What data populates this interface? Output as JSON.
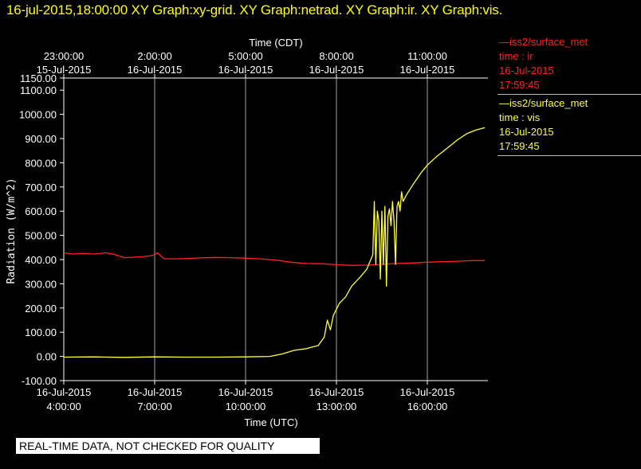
{
  "title_bar": "16-jul-2015,18:00:00  XY Graph:xy-grid.  XY Graph:netrad.  XY Graph:ir.  XY Graph:vis.",
  "disclaimer": "REAL-TIME DATA, NOT CHECKED FOR QUALITY",
  "colors": {
    "ir": "#ff2020",
    "vis": "#ffff33",
    "grid": "#ffffff",
    "background": "#000000"
  },
  "legend": [
    {
      "name": "iss2/surface_met",
      "prefix": "—",
      "label": "time : ir",
      "date": "16-Jul-2015",
      "time": "17:59:45",
      "color": "#ff2020"
    },
    {
      "name": "iss2/surface_met",
      "prefix": "—",
      "label": "time : vis",
      "date": "16-Jul-2015",
      "time": "17:59:45",
      "color": "#ffff33"
    }
  ],
  "chart_data": {
    "type": "line",
    "title": "",
    "ylabel": "Radiation (W/m^2)",
    "xlabel_bottom": "Time (UTC)",
    "xlabel_top": "Time (CDT)",
    "ylim": [
      -100,
      1150
    ],
    "xlim_hours_utc": [
      4.0,
      18.0
    ],
    "grid": true,
    "yticks": [
      "-100.00",
      "0.00",
      "100.00",
      "200.00",
      "300.00",
      "400.00",
      "500.00",
      "600.00",
      "700.00",
      "800.00",
      "900.00",
      "1000.00",
      "1100.00",
      "1150.00"
    ],
    "ytick_values": [
      -100,
      0,
      100,
      200,
      300,
      400,
      500,
      600,
      700,
      800,
      900,
      1000,
      1100,
      1150
    ],
    "bottom_ticks": [
      {
        "hour": 4,
        "date": "16-Jul-2015",
        "time": "4:00:00"
      },
      {
        "hour": 7,
        "date": "16-Jul-2015",
        "time": "7:00:00"
      },
      {
        "hour": 10,
        "date": "16-Jul-2015",
        "time": "10:00:00"
      },
      {
        "hour": 13,
        "date": "16-Jul-2015",
        "time": "13:00:00"
      },
      {
        "hour": 16,
        "date": "16-Jul-2015",
        "time": "16:00:00"
      }
    ],
    "top_ticks": [
      {
        "hour": 4,
        "time": "23:00:00",
        "date": "15-Jul-2015"
      },
      {
        "hour": 7,
        "time": "2:00:00",
        "date": "16-Jul-2015"
      },
      {
        "hour": 10,
        "time": "5:00:00",
        "date": "16-Jul-2015"
      },
      {
        "hour": 13,
        "time": "8:00:00",
        "date": "16-Jul-2015"
      },
      {
        "hour": 16,
        "time": "11:00:00",
        "date": "16-Jul-2015"
      }
    ],
    "series": [
      {
        "name": "iss2/surface_met  time : ir",
        "color": "#ff2020",
        "x": [
          4.0,
          4.3,
          4.6,
          5.0,
          5.4,
          5.7,
          6.0,
          6.3,
          6.6,
          6.9,
          7.1,
          7.3,
          7.6,
          8.0,
          8.5,
          9.0,
          9.5,
          10.0,
          10.5,
          11.0,
          11.5,
          12.0,
          12.5,
          13.0,
          13.5,
          14.0,
          14.5,
          15.0,
          15.5,
          16.0,
          16.5,
          17.0,
          17.5,
          17.9
        ],
        "values": [
          428,
          423,
          426,
          423,
          428,
          420,
          408,
          410,
          412,
          416,
          428,
          404,
          403,
          404,
          407,
          409,
          408,
          406,
          403,
          398,
          389,
          384,
          383,
          379,
          376,
          377,
          380,
          384,
          386,
          389,
          391,
          393,
          396,
          396
        ]
      },
      {
        "name": "iss2/surface_met  time : vis",
        "color": "#ffff33",
        "x": [
          4.0,
          5.0,
          6.0,
          7.0,
          8.0,
          9.0,
          10.0,
          10.8,
          11.2,
          11.6,
          12.0,
          12.4,
          12.6,
          12.7,
          12.8,
          12.9,
          13.1,
          13.3,
          13.5,
          13.8,
          14.0,
          14.1,
          14.2,
          14.25,
          14.3,
          14.35,
          14.4,
          14.45,
          14.5,
          14.55,
          14.6,
          14.65,
          14.7,
          14.75,
          14.8,
          14.85,
          14.9,
          14.95,
          15.0,
          15.05,
          15.1,
          15.15,
          15.2,
          15.3,
          15.5,
          15.8,
          16.0,
          16.3,
          16.6,
          17.0,
          17.3,
          17.6,
          17.9
        ],
        "values": [
          -3,
          -2,
          -4,
          -2,
          -3,
          -3,
          -2,
          0,
          10,
          25,
          32,
          45,
          80,
          150,
          110,
          170,
          220,
          245,
          290,
          330,
          360,
          390,
          420,
          640,
          380,
          600,
          560,
          320,
          600,
          380,
          620,
          290,
          580,
          610,
          540,
          640,
          560,
          380,
          620,
          640,
          600,
          680,
          640,
          665,
          705,
          760,
          790,
          825,
          855,
          895,
          920,
          935,
          945
        ]
      }
    ]
  }
}
